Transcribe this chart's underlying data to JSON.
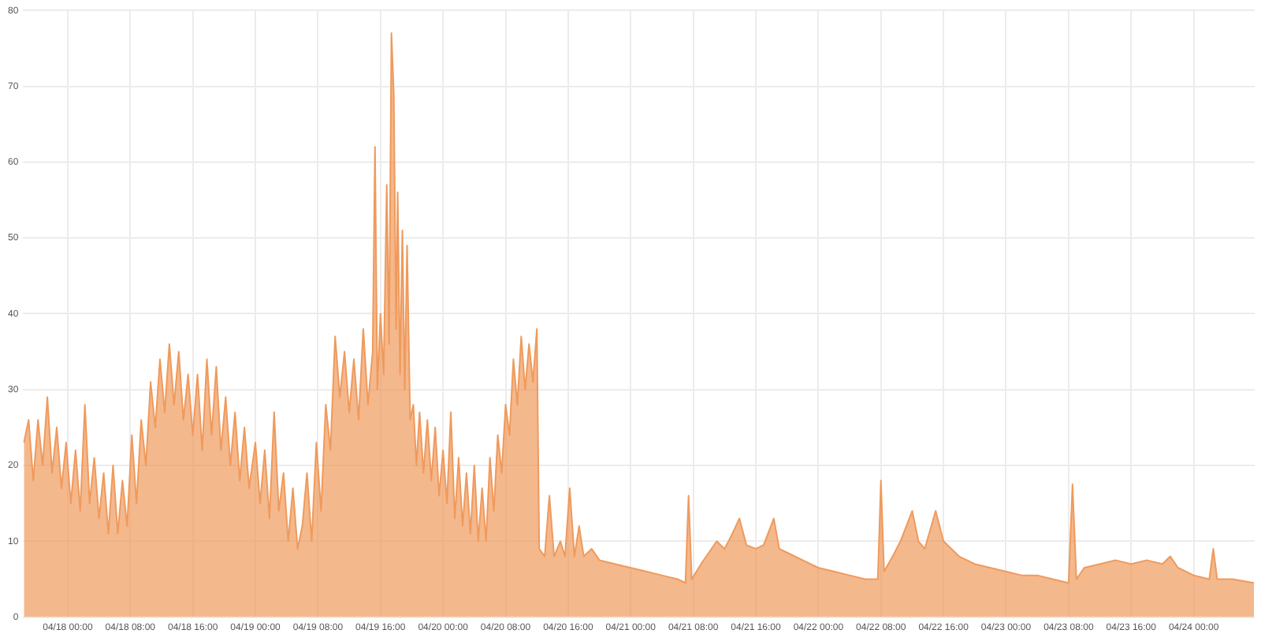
{
  "chart_data": {
    "type": "area",
    "xlim": [
      "--04-17T18:18",
      "--04-24T07:48"
    ],
    "ylim": [
      0,
      80
    ],
    "yticks": [
      0,
      10,
      20,
      30,
      40,
      50,
      60,
      70,
      80
    ],
    "xticks": [
      {
        "value": "--04-18T00:00",
        "label": "04/18 00:00"
      },
      {
        "value": "--04-18T08:00",
        "label": "04/18 08:00"
      },
      {
        "value": "--04-18T16:00",
        "label": "04/18 16:00"
      },
      {
        "value": "--04-19T00:00",
        "label": "04/19 00:00"
      },
      {
        "value": "--04-19T08:00",
        "label": "04/19 08:00"
      },
      {
        "value": "--04-19T16:00",
        "label": "04/19 16:00"
      },
      {
        "value": "--04-20T00:00",
        "label": "04/20 00:00"
      },
      {
        "value": "--04-20T08:00",
        "label": "04/20 08:00"
      },
      {
        "value": "--04-20T16:00",
        "label": "04/20 16:00"
      },
      {
        "value": "--04-21T00:00",
        "label": "04/21 00:00"
      },
      {
        "value": "--04-21T08:00",
        "label": "04/21 08:00"
      },
      {
        "value": "--04-21T16:00",
        "label": "04/21 16:00"
      },
      {
        "value": "--04-22T00:00",
        "label": "04/22 00:00"
      },
      {
        "value": "--04-22T08:00",
        "label": "04/22 08:00"
      },
      {
        "value": "--04-22T16:00",
        "label": "04/22 16:00"
      },
      {
        "value": "--04-23T00:00",
        "label": "04/23 00:00"
      },
      {
        "value": "--04-23T08:00",
        "label": "04/23 08:00"
      },
      {
        "value": "--04-23T16:00",
        "label": "04/23 16:00"
      },
      {
        "value": "--04-24T00:00",
        "label": "04/24 00:00"
      }
    ],
    "grid": true,
    "series": [
      {
        "color": "#ef9a5c",
        "x": [
          "--04-17T18:24",
          "--04-17T19:00",
          "--04-17T19:36",
          "--04-17T20:12",
          "--04-17T20:48",
          "--04-17T21:24",
          "--04-17T22:00",
          "--04-17T22:36",
          "--04-17T23:12",
          "--04-17T23:48",
          "--04-18T00:24",
          "--04-18T01:00",
          "--04-18T01:36",
          "--04-18T02:12",
          "--04-18T02:48",
          "--04-18T03:24",
          "--04-18T04:00",
          "--04-18T04:36",
          "--04-18T05:12",
          "--04-18T05:48",
          "--04-18T06:24",
          "--04-18T07:00",
          "--04-18T07:36",
          "--04-18T08:12",
          "--04-18T08:48",
          "--04-18T09:24",
          "--04-18T10:00",
          "--04-18T10:36",
          "--04-18T11:12",
          "--04-18T11:48",
          "--04-18T12:24",
          "--04-18T13:00",
          "--04-18T13:36",
          "--04-18T14:12",
          "--04-18T14:48",
          "--04-18T15:24",
          "--04-18T16:00",
          "--04-18T16:36",
          "--04-18T17:12",
          "--04-18T17:48",
          "--04-18T18:24",
          "--04-18T19:00",
          "--04-18T19:36",
          "--04-18T20:12",
          "--04-18T20:48",
          "--04-18T21:24",
          "--04-18T22:00",
          "--04-18T22:36",
          "--04-18T23:12",
          "--04-19T00:00",
          "--04-19T00:36",
          "--04-19T01:12",
          "--04-19T01:48",
          "--04-19T02:24",
          "--04-19T03:00",
          "--04-19T03:36",
          "--04-19T04:12",
          "--04-19T04:48",
          "--04-19T05:24",
          "--04-19T06:00",
          "--04-19T06:36",
          "--04-19T07:12",
          "--04-19T07:48",
          "--04-19T08:24",
          "--04-19T09:00",
          "--04-19T09:36",
          "--04-19T10:12",
          "--04-19T10:48",
          "--04-19T11:24",
          "--04-19T12:00",
          "--04-19T12:36",
          "--04-19T13:12",
          "--04-19T13:48",
          "--04-19T14:24",
          "--04-19T15:00",
          "--04-19T15:18",
          "--04-19T15:36",
          "--04-19T16:00",
          "--04-19T16:24",
          "--04-19T16:48",
          "--04-19T17:06",
          "--04-19T17:24",
          "--04-19T17:42",
          "--04-19T18:00",
          "--04-19T18:12",
          "--04-19T18:30",
          "--04-19T18:48",
          "--04-19T19:06",
          "--04-19T19:24",
          "--04-19T19:48",
          "--04-19T20:12",
          "--04-19T20:36",
          "--04-19T21:00",
          "--04-19T21:30",
          "--04-19T22:00",
          "--04-19T22:30",
          "--04-19T23:00",
          "--04-19T23:30",
          "--04-20T00:00",
          "--04-20T00:30",
          "--04-20T01:00",
          "--04-20T01:30",
          "--04-20T02:00",
          "--04-20T02:30",
          "--04-20T03:00",
          "--04-20T03:30",
          "--04-20T04:00",
          "--04-20T04:30",
          "--04-20T05:00",
          "--04-20T05:30",
          "--04-20T06:00",
          "--04-20T06:30",
          "--04-20T07:00",
          "--04-20T07:30",
          "--04-20T08:00",
          "--04-20T08:30",
          "--04-20T09:00",
          "--04-20T09:30",
          "--04-20T10:00",
          "--04-20T10:30",
          "--04-20T11:00",
          "--04-20T11:30",
          "--04-20T12:00",
          "--04-20T12:18",
          "--04-20T13:00",
          "--04-20T13:36",
          "--04-20T14:12",
          "--04-20T15:00",
          "--04-20T15:36",
          "--04-20T16:12",
          "--04-20T16:48",
          "--04-20T17:24",
          "--04-20T18:00",
          "--04-20T19:00",
          "--04-20T20:00",
          "--04-20T22:00",
          "--04-21T00:00",
          "--04-21T02:00",
          "--04-21T04:00",
          "--04-21T06:00",
          "--04-21T07:00",
          "--04-21T07:24",
          "--04-21T07:48",
          "--04-21T09:00",
          "--04-21T10:00",
          "--04-21T11:00",
          "--04-21T12:00",
          "--04-21T13:00",
          "--04-21T13:54",
          "--04-21T14:48",
          "--04-21T16:00",
          "--04-21T17:00",
          "--04-21T18:18",
          "--04-21T19:00",
          "--04-21T20:00",
          "--04-21T22:00",
          "--04-22T00:00",
          "--04-22T02:00",
          "--04-22T04:00",
          "--04-22T06:00",
          "--04-22T07:36",
          "--04-22T08:00",
          "--04-22T08:24",
          "--04-22T09:30",
          "--04-22T10:30",
          "--04-22T12:00",
          "--04-22T12:48",
          "--04-22T13:36",
          "--04-22T15:00",
          "--04-22T16:00",
          "--04-22T18:00",
          "--04-22T20:00",
          "--04-22T22:00",
          "--04-23T00:00",
          "--04-23T02:00",
          "--04-23T04:00",
          "--04-23T06:00",
          "--04-23T08:00",
          "--04-23T08:30",
          "--04-23T09:00",
          "--04-23T10:00",
          "--04-23T12:00",
          "--04-23T14:00",
          "--04-23T16:00",
          "--04-23T18:00",
          "--04-23T20:00",
          "--04-23T21:00",
          "--04-23T22:00",
          "--04-24T00:00",
          "--04-24T02:00",
          "--04-24T02:30",
          "--04-24T03:00",
          "--04-24T05:00",
          "--04-24T07:42"
        ],
        "values": [
          23,
          26,
          18,
          26,
          20,
          29,
          19,
          25,
          17,
          23,
          15,
          22,
          14,
          28,
          15,
          21,
          13,
          19,
          11,
          20,
          11,
          18,
          12,
          24,
          15,
          26,
          20,
          31,
          25,
          34,
          27,
          36,
          28,
          35,
          26,
          32,
          24,
          32,
          22,
          34,
          24,
          33,
          22,
          29,
          20,
          27,
          18,
          25,
          17,
          23,
          15,
          22,
          13,
          27,
          14,
          19,
          10,
          17,
          9,
          12,
          19,
          10,
          23,
          14,
          28,
          22,
          37,
          29,
          35,
          27,
          34,
          26,
          38,
          28,
          35,
          62,
          30,
          40,
          32,
          57,
          36,
          77,
          69,
          38,
          56,
          32,
          51,
          30,
          49,
          26,
          28,
          20,
          27,
          19,
          26,
          18,
          25,
          16,
          22,
          15,
          27,
          13,
          21,
          12,
          19,
          11,
          20,
          10,
          17,
          10,
          21,
          14,
          24,
          19,
          28,
          24,
          34,
          28,
          37,
          30,
          36,
          31,
          38,
          9,
          8,
          16,
          8,
          10,
          8,
          17,
          8,
          12,
          8,
          9,
          7.5,
          7,
          6.5,
          6,
          5.5,
          5,
          4.5,
          16,
          5,
          7,
          8.5,
          10,
          9,
          11,
          13,
          9.5,
          9,
          9.5,
          13,
          9,
          8.5,
          7.5,
          6.5,
          6,
          5.5,
          5,
          5,
          18,
          6,
          8,
          10,
          14,
          10,
          9,
          14,
          10,
          8,
          7,
          6.5,
          6,
          5.5,
          5.5,
          5,
          4.5,
          17.5,
          5,
          6.5,
          7,
          7.5,
          7,
          7.5,
          7,
          8,
          6.5,
          5.5,
          5,
          9,
          5,
          5,
          4.5
        ]
      }
    ]
  }
}
